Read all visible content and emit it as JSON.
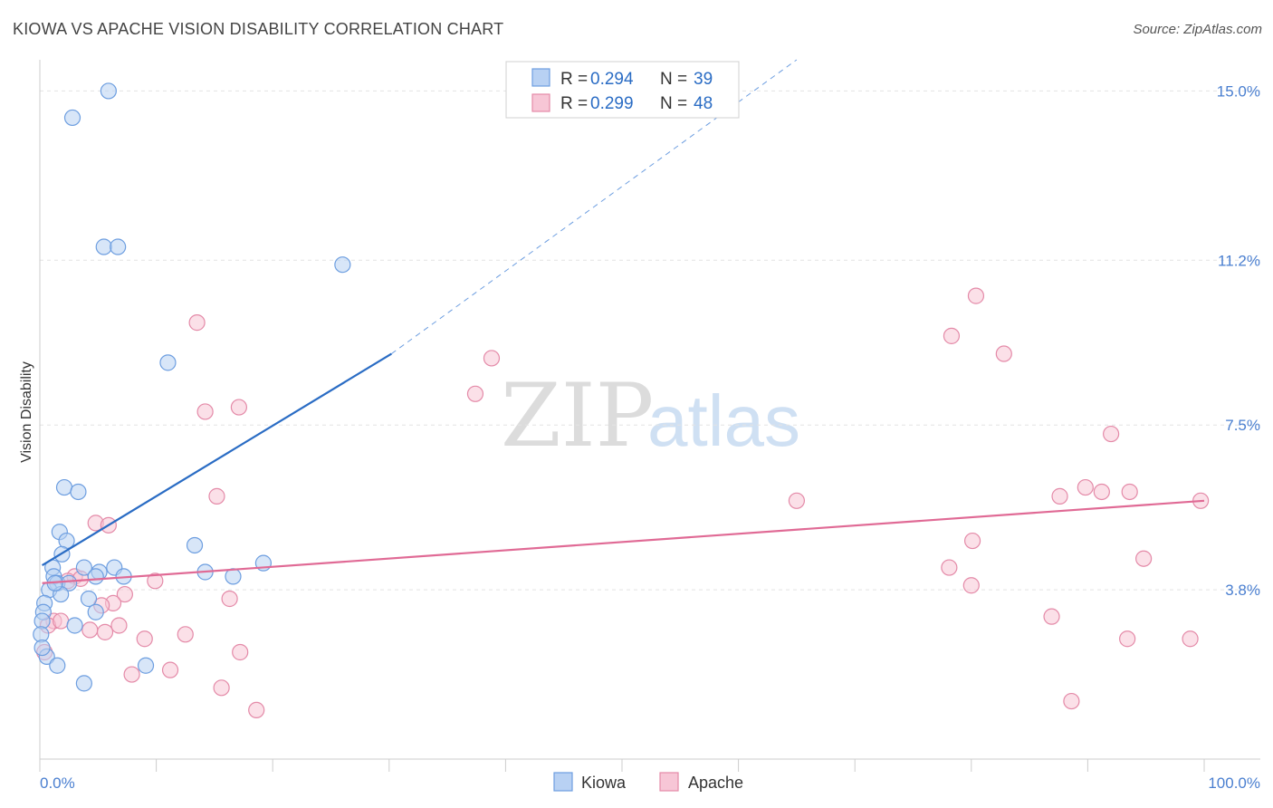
{
  "header": {
    "title": "KIOWA VS APACHE VISION DISABILITY CORRELATION CHART",
    "source": "Source: ZipAtlas.com"
  },
  "watermark": {
    "part1": "ZIP",
    "part2": "atlas"
  },
  "chart_data": {
    "type": "scatter",
    "title": "KIOWA VS APACHE VISION DISABILITY CORRELATION CHART",
    "xlabel": "",
    "ylabel": "Vision Disability",
    "xlim": [
      0,
      100
    ],
    "ylim": [
      0,
      15.7
    ],
    "x_tick_labels": {
      "min": "0.0%",
      "max": "100.0%"
    },
    "y_ticks": [
      3.8,
      7.5,
      11.2,
      15.0
    ],
    "y_tick_labels": [
      "3.8%",
      "7.5%",
      "11.2%",
      "15.0%"
    ],
    "legend": {
      "position": "top-center",
      "entries": [
        {
          "name": "Kiowa",
          "r_label": "R = ",
          "r_value": "0.294",
          "n_label": "N = ",
          "n_value": "39"
        },
        {
          "name": "Apache",
          "r_label": "R = ",
          "r_value": "0.299",
          "n_label": "N = ",
          "n_value": "48"
        }
      ]
    },
    "colors": {
      "kiowa_fill": "#b8d1f3",
      "kiowa_stroke": "#6d9ee0",
      "kiowa_line": "#2a6cc4",
      "apache_fill": "#f7c6d6",
      "apache_stroke": "#e48aa8",
      "apache_line": "#e06a95",
      "grid": "#e4e4e4",
      "tick_text": "#4a7fd0"
    },
    "series": [
      {
        "name": "Kiowa",
        "points": [
          [
            5.9,
            15.0
          ],
          [
            2.8,
            14.4
          ],
          [
            5.5,
            11.5
          ],
          [
            6.7,
            11.5
          ],
          [
            26.0,
            11.1
          ],
          [
            11.0,
            8.9
          ],
          [
            2.1,
            6.1
          ],
          [
            3.3,
            6.0
          ],
          [
            1.7,
            5.1
          ],
          [
            2.3,
            4.9
          ],
          [
            1.9,
            4.6
          ],
          [
            13.3,
            4.8
          ],
          [
            1.1,
            4.3
          ],
          [
            3.8,
            4.3
          ],
          [
            5.1,
            4.2
          ],
          [
            6.4,
            4.3
          ],
          [
            1.2,
            4.1
          ],
          [
            4.8,
            4.1
          ],
          [
            7.2,
            4.1
          ],
          [
            14.2,
            4.2
          ],
          [
            16.6,
            4.1
          ],
          [
            19.2,
            4.4
          ],
          [
            1.5,
            3.95
          ],
          [
            2.5,
            3.95
          ],
          [
            0.8,
            3.8
          ],
          [
            1.8,
            3.7
          ],
          [
            0.4,
            3.5
          ],
          [
            4.2,
            3.6
          ],
          [
            4.8,
            3.3
          ],
          [
            0.3,
            3.3
          ],
          [
            0.2,
            3.1
          ],
          [
            3.0,
            3.0
          ],
          [
            0.1,
            2.8
          ],
          [
            0.6,
            2.3
          ],
          [
            1.5,
            2.1
          ],
          [
            9.1,
            2.1
          ],
          [
            3.8,
            1.7
          ],
          [
            0.2,
            2.5
          ],
          [
            1.3,
            3.95
          ]
        ],
        "trend": {
          "x": [
            0.2,
            30.2
          ],
          "y": [
            4.35,
            9.1
          ]
        },
        "trend_extension": {
          "x": [
            30.2,
            65.0
          ],
          "y": [
            9.1,
            15.7
          ]
        }
      },
      {
        "name": "Apache",
        "points": [
          [
            13.5,
            9.8
          ],
          [
            37.4,
            8.2
          ],
          [
            38.8,
            9.0
          ],
          [
            14.2,
            7.8
          ],
          [
            17.1,
            7.9
          ],
          [
            15.2,
            5.9
          ],
          [
            4.8,
            5.3
          ],
          [
            5.9,
            5.25
          ],
          [
            65.0,
            5.8
          ],
          [
            80.4,
            10.4
          ],
          [
            78.3,
            9.5
          ],
          [
            82.8,
            9.1
          ],
          [
            92.0,
            7.3
          ],
          [
            89.8,
            6.1
          ],
          [
            91.2,
            6.0
          ],
          [
            93.6,
            6.0
          ],
          [
            87.6,
            5.9
          ],
          [
            99.7,
            5.8
          ],
          [
            80.1,
            4.9
          ],
          [
            94.8,
            4.5
          ],
          [
            78.1,
            4.3
          ],
          [
            80.0,
            3.9
          ],
          [
            86.9,
            3.2
          ],
          [
            93.4,
            2.7
          ],
          [
            98.8,
            2.7
          ],
          [
            88.6,
            1.3
          ],
          [
            3.0,
            4.1
          ],
          [
            2.4,
            4.0
          ],
          [
            9.9,
            4.0
          ],
          [
            7.3,
            3.7
          ],
          [
            6.3,
            3.5
          ],
          [
            16.3,
            3.6
          ],
          [
            5.3,
            3.45
          ],
          [
            1.2,
            3.1
          ],
          [
            0.7,
            3.0
          ],
          [
            6.8,
            3.0
          ],
          [
            4.3,
            2.9
          ],
          [
            5.6,
            2.85
          ],
          [
            12.5,
            2.8
          ],
          [
            9.0,
            2.7
          ],
          [
            17.2,
            2.4
          ],
          [
            0.4,
            2.4
          ],
          [
            11.2,
            2.0
          ],
          [
            7.9,
            1.9
          ],
          [
            15.6,
            1.6
          ],
          [
            18.6,
            1.1
          ],
          [
            1.8,
            3.1
          ],
          [
            3.5,
            4.05
          ]
        ],
        "trend": {
          "x": [
            0.2,
            100.0
          ],
          "y": [
            3.95,
            5.8
          ]
        }
      }
    ]
  }
}
